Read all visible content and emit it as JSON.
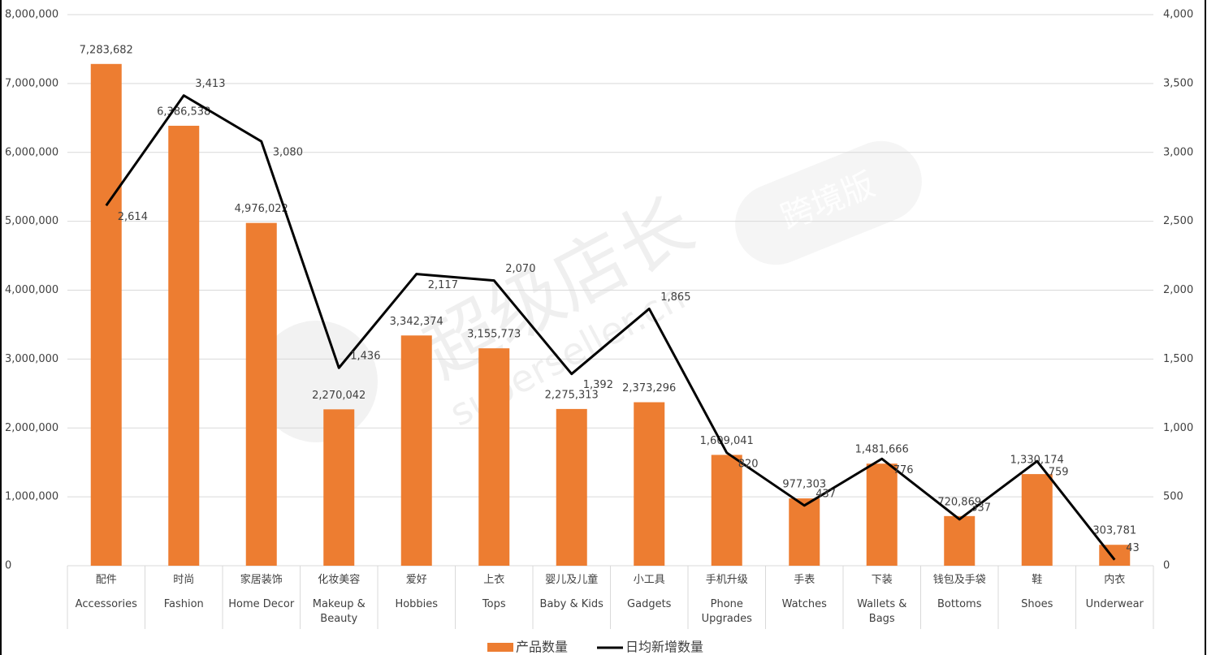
{
  "chart_data": {
    "type": "bar-line",
    "categories": [
      [
        "配件",
        "Accessories"
      ],
      [
        "时尚",
        "Fashion"
      ],
      [
        "家居装饰",
        "Home Decor"
      ],
      [
        "化妆美容",
        "Makeup & Beauty"
      ],
      [
        "爱好",
        "Hobbies"
      ],
      [
        "上衣",
        "Tops"
      ],
      [
        "婴儿及儿童",
        "Baby & Kids"
      ],
      [
        "小工具",
        "Gadgets"
      ],
      [
        "手机升级",
        "Phone Upgrades"
      ],
      [
        "手表",
        "Watches"
      ],
      [
        "下装",
        "Wallets & Bags"
      ],
      [
        "钱包及手袋",
        "Bottoms"
      ],
      [
        "鞋",
        "Shoes"
      ],
      [
        "内衣",
        "Underwear"
      ]
    ],
    "series": [
      {
        "name": "产品数量",
        "type": "bar",
        "color": "#ED7D31",
        "values": [
          7283682,
          6386538,
          4976022,
          2270042,
          3342374,
          3155773,
          2275313,
          2373296,
          1609041,
          977303,
          1481666,
          720869,
          1330174,
          303781
        ],
        "value_labels": [
          "7,283,682",
          "6,386,538",
          "4,976,022",
          "2,270,042",
          "3,342,374",
          "3,155,773",
          "2,275,313",
          "2,373,296",
          "1,609,041",
          "977,303",
          "1,481,666",
          "720,869",
          "1,330,174",
          "303,781"
        ]
      },
      {
        "name": "日均新增数量",
        "type": "line",
        "color": "#000000",
        "axis": "y2",
        "values": [
          2614,
          3413,
          3080,
          1436,
          2117,
          2070,
          1392,
          1865,
          820,
          437,
          776,
          337,
          759,
          43
        ],
        "value_labels": [
          "2,614",
          "3,413",
          "3,080",
          "1,436",
          "2,117",
          "2,070",
          "1,392",
          "1,865",
          "820",
          "437",
          "776",
          "337",
          "759",
          "43"
        ]
      }
    ],
    "ylim": [
      0,
      8000000
    ],
    "yticks": [
      0,
      {
        "value": 1000000,
        "label": "1,000,000"
      },
      {
        "value": 2000000,
        "label": "2,000,000"
      },
      {
        "value": 3000000,
        "label": "3,000,000"
      },
      {
        "value": 4000000,
        "label": "4,000,000"
      },
      {
        "value": 5000000,
        "label": "5,000,000"
      },
      {
        "value": 6000000,
        "label": "6,000,000"
      },
      {
        "value": 7000000,
        "label": "7,000,000"
      },
      {
        "value": 8000000,
        "label": "8,000,000"
      }
    ],
    "y2lim": [
      0,
      4000
    ],
    "y2ticks": [
      0,
      500,
      {
        "value": 1000,
        "label": "1,000"
      },
      {
        "value": 1500,
        "label": "1,500"
      },
      {
        "value": 2000,
        "label": "2,000"
      },
      {
        "value": 2500,
        "label": "2,500"
      },
      {
        "value": 3000,
        "label": "3,000"
      },
      {
        "value": 3500,
        "label": "3,500"
      },
      {
        "value": 4000,
        "label": "4,000"
      }
    ],
    "grid": true,
    "legend": "bottom",
    "watermark": [
      "超级店长",
      "superseller.cn",
      "跨境版"
    ]
  }
}
